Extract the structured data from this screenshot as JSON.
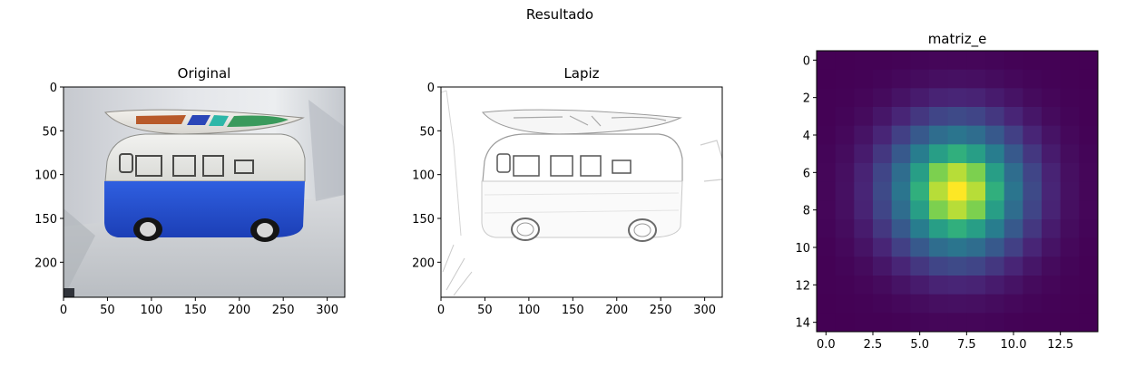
{
  "figure": {
    "suptitle": "Resultado"
  },
  "chart_data": [
    {
      "type": "image",
      "title": "Original",
      "xlim": [
        0,
        320
      ],
      "ylim": [
        240,
        0
      ],
      "xticks": [
        0,
        50,
        100,
        150,
        200,
        250,
        300
      ],
      "yticks": [
        0,
        50,
        100,
        150,
        200
      ],
      "content": "photo of a toy VW van: blue lower body, white upper body, surfboard on the roof, black wheels"
    },
    {
      "type": "image",
      "title": "Lapiz",
      "xlim": [
        0,
        320
      ],
      "ylim": [
        240,
        0
      ],
      "xticks": [
        0,
        50,
        100,
        150,
        200,
        250,
        300
      ],
      "yticks": [
        0,
        50,
        100,
        150,
        200
      ],
      "content": "pencil sketch effect of the same toy van"
    },
    {
      "type": "heatmap",
      "title": "matriz_e",
      "colormap": "viridis",
      "xlim": [
        -0.5,
        14.5
      ],
      "ylim": [
        14.5,
        -0.5
      ],
      "xticks": [
        "0.0",
        "2.5",
        "5.0",
        "7.5",
        "10.0",
        "12.5"
      ],
      "xtick_values": [
        0,
        2.5,
        5,
        7.5,
        10,
        12.5
      ],
      "yticks": [
        "0",
        "2",
        "4",
        "6",
        "8",
        "10",
        "12",
        "14"
      ],
      "ytick_values": [
        0,
        2,
        4,
        6,
        8,
        10,
        12,
        14
      ],
      "size": 15,
      "center": [
        7,
        7
      ],
      "sigma": 2.5,
      "description": "15x15 Gaussian kernel, maximum at the center cell (7, 7)"
    }
  ]
}
